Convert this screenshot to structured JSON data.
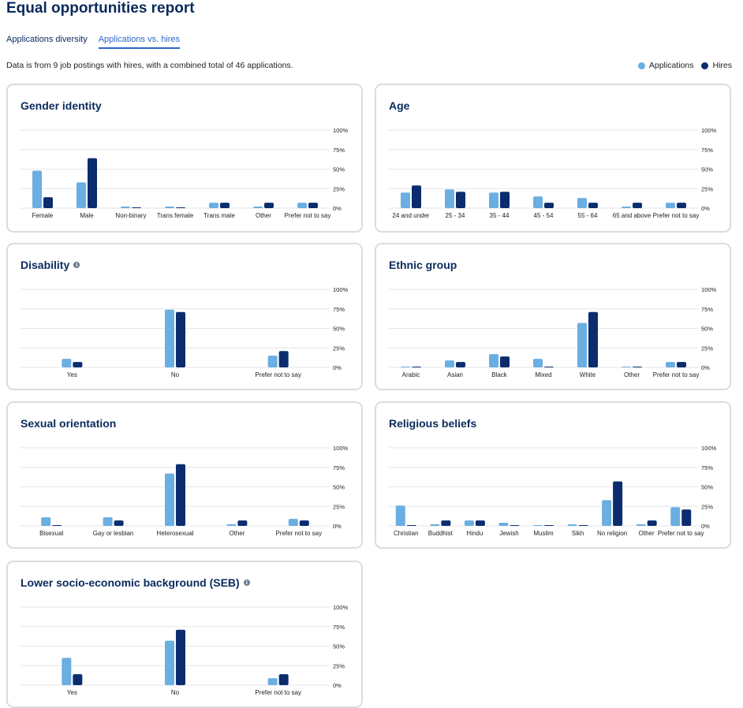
{
  "page": {
    "title": "Equal opportunities report",
    "tabs": [
      "Applications diversity",
      "Applications vs. hires"
    ],
    "active_tab": 1,
    "info": "Data is from 9 job postings with hires, with a combined total of 46 applications.",
    "legend": [
      {
        "label": "Applications",
        "color": "#6aaee2"
      },
      {
        "label": "Hires",
        "color": "#0b2d6e"
      }
    ]
  },
  "colors": {
    "applications": "#6aaee2",
    "hires": "#0b2d6e",
    "grid": "#e4e6ea",
    "tick": "#222222"
  },
  "chart_data": [
    {
      "id": "gender",
      "type": "bar",
      "title": "Gender identity",
      "has_info_icon": false,
      "ylim": [
        0,
        100
      ],
      "yticks": [
        "0%",
        "25%",
        "50%",
        "75%",
        "100%"
      ],
      "categories": [
        "Female",
        "Male",
        "Non-binary",
        "Trans female",
        "Trans male",
        "Other",
        "Prefer not to say"
      ],
      "series": [
        {
          "name": "Applications",
          "values": [
            48,
            33,
            2,
            2,
            7,
            2,
            7
          ]
        },
        {
          "name": "Hires",
          "values": [
            14,
            64,
            1,
            1,
            7,
            7,
            7
          ]
        }
      ]
    },
    {
      "id": "age",
      "type": "bar",
      "title": "Age",
      "has_info_icon": false,
      "ylim": [
        0,
        100
      ],
      "yticks": [
        "0%",
        "25%",
        "50%",
        "75%",
        "100%"
      ],
      "categories": [
        "24 and under",
        "25 - 34",
        "35 - 44",
        "45 - 54",
        "55 - 64",
        "65 and above",
        "Prefer not to say"
      ],
      "series": [
        {
          "name": "Applications",
          "values": [
            20,
            24,
            20,
            15,
            13,
            2,
            7
          ]
        },
        {
          "name": "Hires",
          "values": [
            29,
            21,
            21,
            7,
            7,
            7,
            7
          ]
        }
      ]
    },
    {
      "id": "disability",
      "type": "bar",
      "title": "Disability",
      "has_info_icon": true,
      "ylim": [
        0,
        100
      ],
      "yticks": [
        "0%",
        "25%",
        "50%",
        "75%",
        "100%"
      ],
      "categories": [
        "Yes",
        "No",
        "Prefer not to say"
      ],
      "series": [
        {
          "name": "Applications",
          "values": [
            11,
            74,
            15
          ]
        },
        {
          "name": "Hires",
          "values": [
            7,
            71,
            21
          ]
        }
      ]
    },
    {
      "id": "ethnic",
      "type": "bar",
      "title": "Ethnic group",
      "has_info_icon": false,
      "ylim": [
        0,
        100
      ],
      "yticks": [
        "0%",
        "25%",
        "50%",
        "75%",
        "100%"
      ],
      "categories": [
        "Arabic",
        "Asian",
        "Black",
        "Mixed",
        "White",
        "Other",
        "Prefer not to say"
      ],
      "series": [
        {
          "name": "Applications",
          "values": [
            1,
            9,
            17,
            11,
            57,
            1,
            7
          ]
        },
        {
          "name": "Hires",
          "values": [
            1,
            7,
            14,
            1,
            71,
            1,
            7
          ]
        }
      ]
    },
    {
      "id": "sexual",
      "type": "bar",
      "title": "Sexual orientation",
      "has_info_icon": false,
      "ylim": [
        0,
        100
      ],
      "yticks": [
        "0%",
        "25%",
        "50%",
        "75%",
        "100%"
      ],
      "categories": [
        "Bisexual",
        "Gay or lesbian",
        "Heterosexual",
        "Other",
        "Prefer not to say"
      ],
      "series": [
        {
          "name": "Applications",
          "values": [
            11,
            11,
            67,
            2,
            9
          ]
        },
        {
          "name": "Hires",
          "values": [
            1,
            7,
            79,
            7,
            7
          ]
        }
      ]
    },
    {
      "id": "religion",
      "type": "bar",
      "title": "Religious beliefs",
      "has_info_icon": false,
      "ylim": [
        0,
        100
      ],
      "yticks": [
        "0%",
        "25%",
        "50%",
        "75%",
        "100%"
      ],
      "categories": [
        "Christian",
        "Buddhist",
        "Hindu",
        "Jewish",
        "Muslim",
        "Sikh",
        "No religion",
        "Other",
        "Prefer not to say"
      ],
      "series": [
        {
          "name": "Applications",
          "values": [
            26,
            2,
            7,
            4,
            1,
            2,
            33,
            2,
            24
          ]
        },
        {
          "name": "Hires",
          "values": [
            1,
            7,
            7,
            1,
            1,
            1,
            57,
            7,
            21
          ]
        }
      ]
    },
    {
      "id": "seb",
      "type": "bar",
      "title": "Lower socio-economic background (SEB)",
      "has_info_icon": true,
      "ylim": [
        0,
        100
      ],
      "yticks": [
        "0%",
        "25%",
        "50%",
        "75%",
        "100%"
      ],
      "categories": [
        "Yes",
        "No",
        "Prefer not to say"
      ],
      "series": [
        {
          "name": "Applications",
          "values": [
            35,
            57,
            9
          ]
        },
        {
          "name": "Hires",
          "values": [
            14,
            71,
            14
          ]
        }
      ]
    }
  ]
}
